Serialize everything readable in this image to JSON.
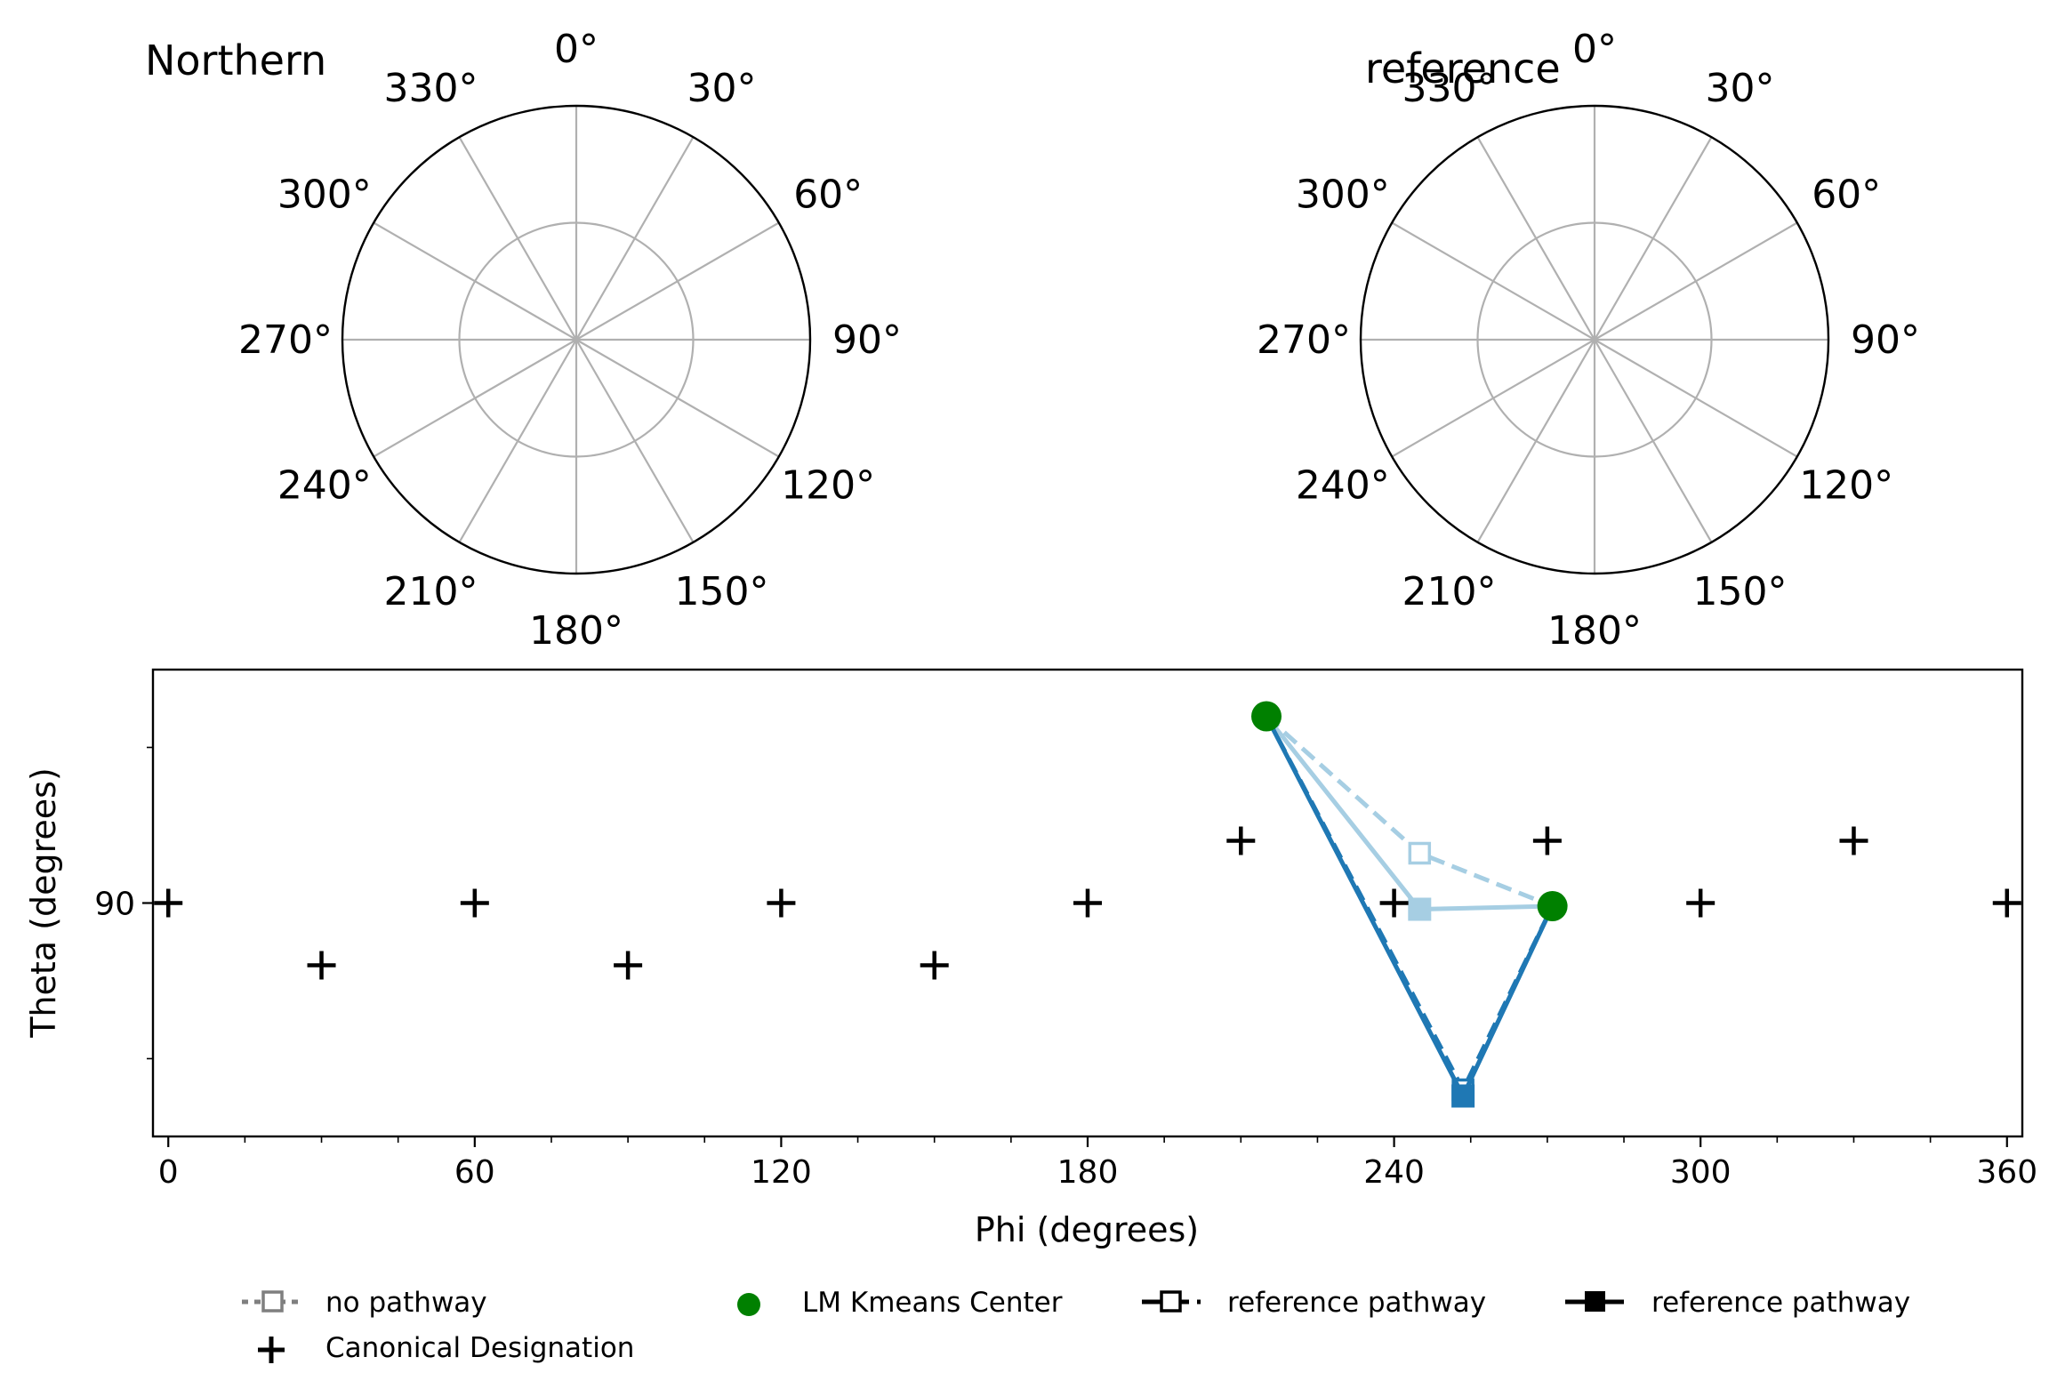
{
  "polar_plots": [
    {
      "title": "Northern",
      "angle_labels": [
        "0°",
        "30°",
        "60°",
        "90°",
        "120°",
        "150°",
        "180°",
        "210°",
        "240°",
        "270°",
        "300°",
        "330°"
      ]
    },
    {
      "title": "reference",
      "angle_labels": [
        "0°",
        "30°",
        "60°",
        "90°",
        "120°",
        "150°",
        "180°",
        "210°",
        "240°",
        "270°",
        "300°",
        "330°"
      ]
    }
  ],
  "chart_data": {
    "type": "line",
    "title": "",
    "xlabel": "Phi (degrees)",
    "ylabel": "Theta (degrees)",
    "xlim": [
      -3,
      363
    ],
    "ylim": [
      52.5,
      127.5
    ],
    "xticks": [
      0,
      60,
      120,
      180,
      240,
      300,
      360
    ],
    "yticks": [
      90
    ],
    "grid": false,
    "legend_position": "bottom",
    "canonical_designation": [
      {
        "x": 0,
        "y": 90
      },
      {
        "x": 30,
        "y": 80
      },
      {
        "x": 60,
        "y": 90
      },
      {
        "x": 90,
        "y": 80
      },
      {
        "x": 120,
        "y": 90
      },
      {
        "x": 150,
        "y": 80
      },
      {
        "x": 180,
        "y": 90
      },
      {
        "x": 210,
        "y": 100
      },
      {
        "x": 240,
        "y": 90
      },
      {
        "x": 270,
        "y": 100
      },
      {
        "x": 300,
        "y": 90
      },
      {
        "x": 330,
        "y": 100
      },
      {
        "x": 360,
        "y": 90
      }
    ],
    "kmeans_centers": [
      {
        "x": 215,
        "y": 120
      },
      {
        "x": 271,
        "y": 89.5
      }
    ],
    "series": [
      {
        "legend_index": 2,
        "style": "dashed-open",
        "color": "#a6cee3",
        "x": [
          215,
          245,
          271
        ],
        "y": [
          120,
          98,
          89.5
        ]
      },
      {
        "legend_index": 3,
        "style": "solid-filled",
        "color": "#a6cee3",
        "x": [
          215,
          245,
          271
        ],
        "y": [
          120,
          89,
          89.5
        ]
      },
      {
        "legend_index": 2,
        "style": "dashed-open",
        "color": "#1f78b4",
        "x": [
          215,
          253.5,
          271
        ],
        "y": [
          120,
          60,
          89.5
        ]
      },
      {
        "legend_index": 3,
        "style": "solid-filled",
        "color": "#1f78b4",
        "x": [
          215,
          253.5,
          271
        ],
        "y": [
          120,
          59,
          89.5
        ]
      }
    ],
    "legend": [
      {
        "label": "no pathway",
        "marker": "open-square-dotted",
        "color": "#7f7f7f"
      },
      {
        "label": "LM Kmeans Center",
        "marker": "circle",
        "color": "#008000"
      },
      {
        "label": "reference pathway",
        "marker": "open-square-dashed",
        "color": "#000000"
      },
      {
        "label": "reference pathway",
        "marker": "filled-square-solid",
        "color": "#000000"
      },
      {
        "label": "Canonical Designation",
        "marker": "plus",
        "color": "#000000"
      }
    ]
  }
}
